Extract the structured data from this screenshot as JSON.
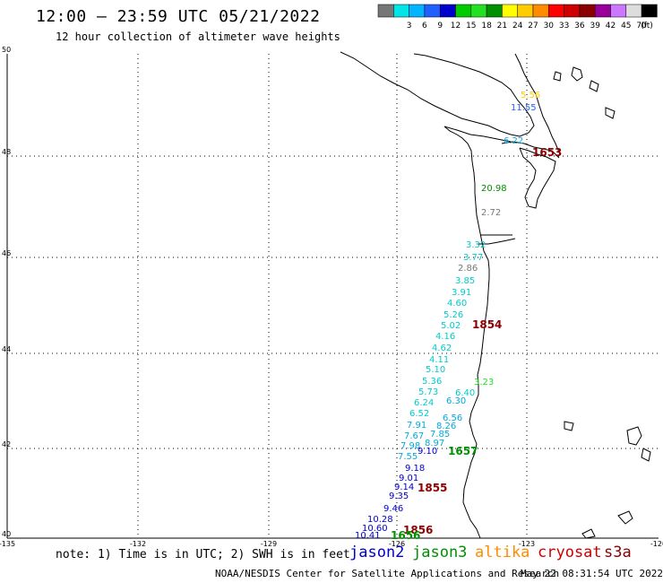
{
  "title": "12:00 — 23:59 UTC 05/21/2022",
  "subtitle": "12 hour collection of altimeter wave heights",
  "scale": {
    "unit": "(ft)",
    "bins": [
      {
        "label": "",
        "color": "#777777"
      },
      {
        "label": "3",
        "color": "#00e5e5"
      },
      {
        "label": "6",
        "color": "#00b4ff"
      },
      {
        "label": "9",
        "color": "#2060ff"
      },
      {
        "label": "12",
        "color": "#0000cc"
      },
      {
        "label": "15",
        "color": "#00cc00"
      },
      {
        "label": "18",
        "color": "#22e022"
      },
      {
        "label": "21",
        "color": "#009000"
      },
      {
        "label": "24",
        "color": "#ffff00"
      },
      {
        "label": "27",
        "color": "#ffcc00"
      },
      {
        "label": "30",
        "color": "#ff8c00"
      },
      {
        "label": "33",
        "color": "#ff0000"
      },
      {
        "label": "36",
        "color": "#cc0000"
      },
      {
        "label": "39",
        "color": "#8b0000"
      },
      {
        "label": "42",
        "color": "#990099"
      },
      {
        "label": "45",
        "color": "#cc77ff"
      },
      {
        "label": "70",
        "color": "#dddddd"
      },
      {
        "label": "",
        "color": "#000000"
      }
    ]
  },
  "axes": {
    "lat_labels": [
      "50",
      "48",
      "46",
      "44",
      "42",
      "40"
    ],
    "lon_labels": [
      "-135",
      "-132",
      "-129",
      "-126",
      "-123",
      "-120"
    ]
  },
  "observations": [
    {
      "t": "20.98",
      "c": "#009000"
    },
    {
      "t": "3.32",
      "c": "#00cccc"
    },
    {
      "t": "3.77",
      "c": "#00cccc"
    },
    {
      "t": "2.86",
      "c": "#777777"
    },
    {
      "t": "3.85",
      "c": "#00cccc"
    },
    {
      "t": "3.91",
      "c": "#00cccc"
    },
    {
      "t": "4.60",
      "c": "#00cccc"
    },
    {
      "t": "5.26",
      "c": "#00cccc"
    },
    {
      "t": "5.02",
      "c": "#00cccc"
    },
    {
      "t": "4.16",
      "c": "#00cccc"
    },
    {
      "t": "4.62",
      "c": "#00cccc"
    },
    {
      "t": "4.11",
      "c": "#00cccc"
    },
    {
      "t": "5.10",
      "c": "#00cccc"
    },
    {
      "t": "5.36",
      "c": "#00cccc"
    },
    {
      "t": "5.73",
      "c": "#00cccc"
    },
    {
      "t": "6.24",
      "c": "#00cccc"
    },
    {
      "t": "6.52",
      "c": "#00cccc"
    },
    {
      "t": "7.91",
      "c": "#00aadd"
    },
    {
      "t": "7.67",
      "c": "#00aadd"
    },
    {
      "t": "7.98",
      "c": "#00aadd"
    },
    {
      "t": "7.55",
      "c": "#00aadd"
    },
    {
      "t": "8.97",
      "c": "#00aadd"
    },
    {
      "t": "7.85",
      "c": "#00aadd"
    },
    {
      "t": "8.26",
      "c": "#00aadd"
    },
    {
      "t": "6.56",
      "c": "#00aadd"
    },
    {
      "t": "6.30",
      "c": "#00aadd"
    },
    {
      "t": "6.40",
      "c": "#00cccc"
    },
    {
      "t": "9.10",
      "c": "#0000cc"
    },
    {
      "t": "9.18",
      "c": "#0000cc"
    },
    {
      "t": "9.01",
      "c": "#0000cc"
    },
    {
      "t": "9.14",
      "c": "#0000cc"
    },
    {
      "t": "9.35",
      "c": "#0000cc"
    },
    {
      "t": "9.46",
      "c": "#0000cc"
    },
    {
      "t": "10.28",
      "c": "#0000cc"
    },
    {
      "t": "10.60",
      "c": "#0000cc"
    },
    {
      "t": "10.41",
      "c": "#0000cc"
    },
    {
      "t": "6.22",
      "c": "#00aadd"
    },
    {
      "t": "11.55",
      "c": "#2060ff"
    },
    {
      "t": "1854",
      "c": "#8b0000"
    },
    {
      "t": "1855",
      "c": "#8b0000"
    },
    {
      "t": "1856",
      "c": "#8b0000"
    },
    {
      "t": "1657",
      "c": "#009000"
    },
    {
      "t": "1656",
      "c": "#009000"
    },
    {
      "t": "1653",
      "c": "#8b0000"
    },
    {
      "t": "3.23",
      "c": "#22e022"
    },
    {
      "t": "5.56",
      "c": "#ffcc00"
    },
    {
      "t": "2.72",
      "c": "#777777"
    }
  ],
  "footer": {
    "note": "note: 1) Time is in UTC; 2) SWH is in feet",
    "satellites": [
      {
        "name": "jason2",
        "color": "#0000cc"
      },
      {
        "name": "jason3",
        "color": "#009000"
      },
      {
        "name": "altika",
        "color": "#ff8c00"
      },
      {
        "name": "cryosat",
        "color": "#cc0000"
      },
      {
        "name": "s3a",
        "color": "#8b0000"
      }
    ],
    "credit": "NOAA/NESDIS Center for Satellite Applications and Research",
    "timestamp": "May 22 08:31:54 UTC 2022"
  }
}
